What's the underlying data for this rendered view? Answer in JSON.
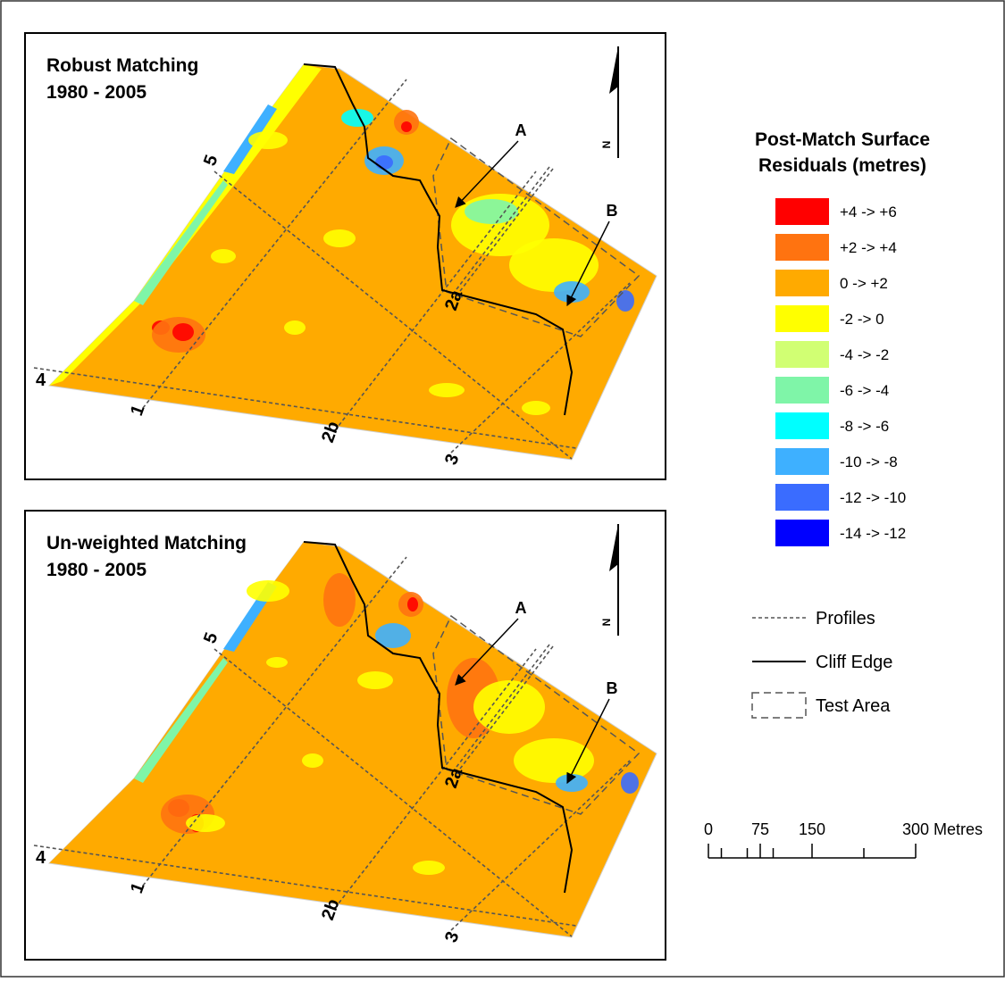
{
  "panels": [
    {
      "title": [
        "Robust Matching",
        "1980 - 2005"
      ],
      "north": "N",
      "annotations": [
        "A",
        "B"
      ],
      "profiles": [
        "5",
        "2a",
        "4",
        "1",
        "2b",
        "3"
      ]
    },
    {
      "title": [
        "Un-weighted Matching",
        "1980 - 2005"
      ],
      "north": "N",
      "annotations": [
        "A",
        "B"
      ],
      "profiles": [
        "5",
        "2a",
        "4",
        "1",
        "2b",
        "3"
      ]
    }
  ],
  "legend": {
    "title": [
      "Post-Match Surface",
      "Residuals (metres)"
    ],
    "items": [
      {
        "label": "+4 -> +6",
        "color": "#ff0000"
      },
      {
        "label": "+2 -> +4",
        "color": "#ff7310"
      },
      {
        "label": "0 -> +2",
        "color": "#ffaa00"
      },
      {
        "label": "-2 -> 0",
        "color": "#ffff00"
      },
      {
        "label": "-4 -> -2",
        "color": "#d1ff73"
      },
      {
        "label": "-6 -> -4",
        "color": "#7ff5a8"
      },
      {
        "label": "-8 -> -6",
        "color": "#00ffff"
      },
      {
        "label": "-10 -> -8",
        "color": "#3eb0ff"
      },
      {
        "label": "-12 -> -10",
        "color": "#3a6cff"
      },
      {
        "label": "-14 -> -12",
        "color": "#0000ff"
      }
    ],
    "symbols": [
      "Profiles",
      "Cliff Edge",
      "Test Area"
    ]
  },
  "scale_bar": {
    "ticks": [
      0,
      75,
      150,
      300
    ],
    "unit": "Metres"
  }
}
